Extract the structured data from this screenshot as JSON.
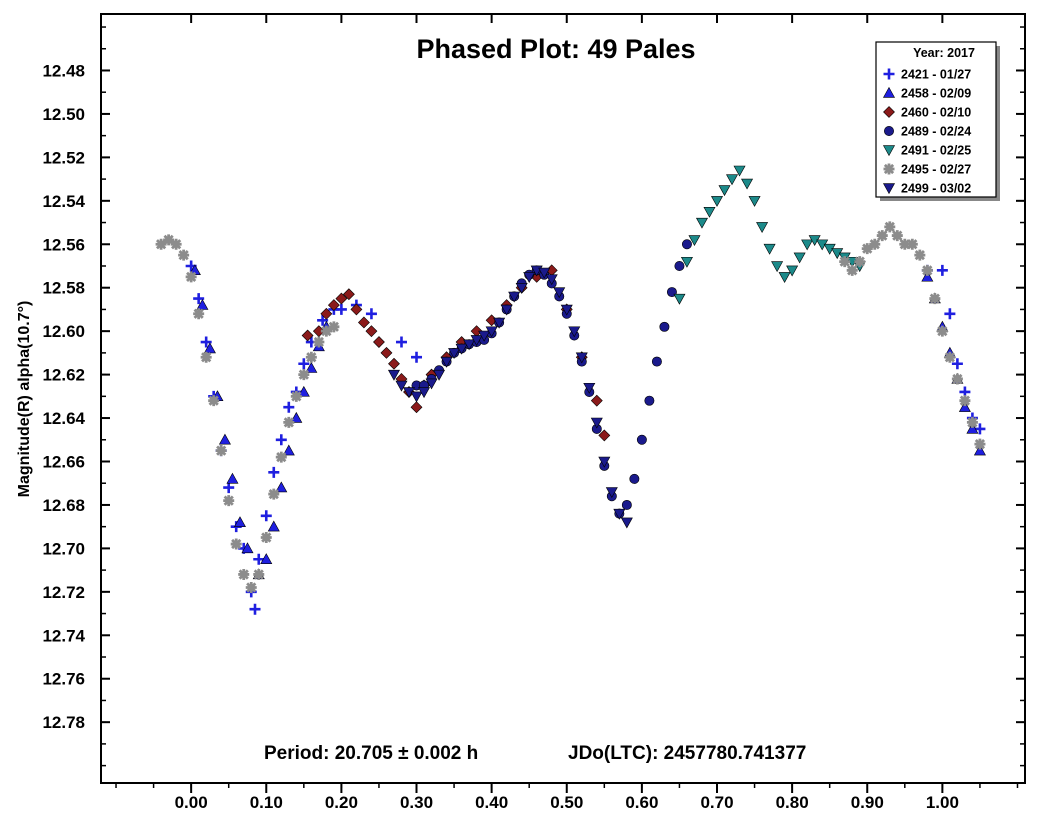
{
  "chart_data": {
    "type": "scatter",
    "title": "Phased Plot: 49 Pales",
    "xlabel": "",
    "ylabel": "Magnitude(R) alpha(10.7°)",
    "xlim": [
      -0.12,
      1.11
    ],
    "ylim": [
      12.808,
      12.454
    ],
    "y_inverted": true,
    "x_ticks": [
      "0.00",
      "0.10",
      "0.20",
      "0.30",
      "0.40",
      "0.50",
      "0.60",
      "0.70",
      "0.80",
      "0.90",
      "1.00"
    ],
    "y_ticks": [
      "12.48",
      "12.50",
      "12.52",
      "12.54",
      "12.56",
      "12.58",
      "12.60",
      "12.62",
      "12.64",
      "12.66",
      "12.68",
      "12.70",
      "12.72",
      "12.74",
      "12.76",
      "12.78"
    ],
    "grid": false,
    "legend_position": "top-right",
    "legend_title": "Year: 2017",
    "annotations": {
      "period": "Period: 20.705 ± 0.002 h",
      "epoch": "JDo(LTC): 2457780.741377"
    },
    "series": [
      {
        "name": "2421 - 01/27",
        "marker": "plus",
        "color": "#1f1fe0",
        "x": [
          0.0,
          0.01,
          0.02,
          0.03,
          0.04,
          0.05,
          0.06,
          0.07,
          0.08,
          0.085,
          0.09,
          0.1,
          0.11,
          0.12,
          0.13,
          0.14,
          0.15,
          0.16,
          0.175,
          0.19,
          0.2,
          0.22,
          0.24,
          0.28,
          0.3,
          0.98,
          1.0,
          1.01,
          1.02,
          1.03,
          1.04,
          1.05
        ],
        "y": [
          12.57,
          12.585,
          12.605,
          12.63,
          12.655,
          12.672,
          12.69,
          12.7,
          12.72,
          12.728,
          12.705,
          12.685,
          12.665,
          12.65,
          12.635,
          12.628,
          12.615,
          12.605,
          12.595,
          12.59,
          12.59,
          12.588,
          12.592,
          12.605,
          12.612,
          12.572,
          12.572,
          12.592,
          12.615,
          12.628,
          12.64,
          12.645
        ]
      },
      {
        "name": "2458 - 02/09",
        "marker": "triangle-up",
        "color": "#1f1fe0",
        "x": [
          0.005,
          0.015,
          0.025,
          0.035,
          0.045,
          0.055,
          0.065,
          0.075,
          0.09,
          0.1,
          0.11,
          0.12,
          0.13,
          0.14,
          0.15,
          0.16,
          0.17,
          0.18,
          0.98,
          0.99,
          1.0,
          1.01,
          1.02,
          1.03,
          1.04,
          1.05
        ],
        "y": [
          12.572,
          12.588,
          12.608,
          12.63,
          12.65,
          12.668,
          12.688,
          12.7,
          12.712,
          12.705,
          12.69,
          12.672,
          12.655,
          12.64,
          12.628,
          12.617,
          12.607,
          12.598,
          12.575,
          12.585,
          12.598,
          12.61,
          12.622,
          12.635,
          12.645,
          12.655
        ]
      },
      {
        "name": "2460 - 02/10",
        "marker": "diamond",
        "color": "#8b1a1a",
        "x": [
          0.155,
          0.17,
          0.18,
          0.19,
          0.2,
          0.21,
          0.22,
          0.23,
          0.24,
          0.25,
          0.26,
          0.27,
          0.28,
          0.29,
          0.3,
          0.31,
          0.32,
          0.34,
          0.36,
          0.38,
          0.4,
          0.42,
          0.44,
          0.46,
          0.48,
          0.5,
          0.52,
          0.54,
          0.55
        ],
        "y": [
          12.602,
          12.6,
          12.592,
          12.588,
          12.585,
          12.583,
          12.59,
          12.596,
          12.6,
          12.605,
          12.61,
          12.615,
          12.622,
          12.628,
          12.635,
          12.625,
          12.62,
          12.612,
          12.605,
          12.6,
          12.595,
          12.588,
          12.58,
          12.575,
          12.572,
          12.59,
          12.612,
          12.632,
          12.648
        ]
      },
      {
        "name": "2489 - 02/24",
        "marker": "circle",
        "color": "#1a1a8c",
        "x": [
          0.3,
          0.31,
          0.32,
          0.33,
          0.34,
          0.35,
          0.36,
          0.37,
          0.38,
          0.39,
          0.4,
          0.41,
          0.42,
          0.43,
          0.44,
          0.45,
          0.46,
          0.47,
          0.48,
          0.49,
          0.5,
          0.51,
          0.52,
          0.53,
          0.54,
          0.55,
          0.56,
          0.57,
          0.58,
          0.59,
          0.6,
          0.61,
          0.62,
          0.63,
          0.64,
          0.65,
          0.66
        ],
        "y": [
          12.625,
          12.625,
          12.622,
          12.618,
          12.614,
          12.61,
          12.608,
          12.606,
          12.605,
          12.604,
          12.601,
          12.596,
          12.59,
          12.584,
          12.578,
          12.574,
          12.572,
          12.574,
          12.578,
          12.584,
          12.592,
          12.602,
          12.614,
          12.628,
          12.645,
          12.662,
          12.676,
          12.684,
          12.68,
          12.668,
          12.65,
          12.632,
          12.614,
          12.598,
          12.582,
          12.57,
          12.56
        ]
      },
      {
        "name": "2491 - 02/25",
        "marker": "triangle-down",
        "color": "#1c8a8a",
        "x": [
          0.65,
          0.66,
          0.67,
          0.68,
          0.69,
          0.7,
          0.71,
          0.72,
          0.73,
          0.74,
          0.75,
          0.76,
          0.77,
          0.78,
          0.79,
          0.8,
          0.81,
          0.82,
          0.83,
          0.84,
          0.85,
          0.86,
          0.87,
          0.88,
          0.89
        ],
        "y": [
          12.585,
          12.568,
          12.558,
          12.55,
          12.545,
          12.54,
          12.535,
          12.53,
          12.526,
          12.532,
          12.54,
          12.552,
          12.562,
          12.57,
          12.575,
          12.572,
          12.566,
          12.56,
          12.558,
          12.56,
          12.562,
          12.564,
          12.566,
          12.568,
          12.57
        ]
      },
      {
        "name": "2495 - 02/27",
        "marker": "asterisk",
        "color": "#8c8c8c",
        "x": [
          -0.04,
          -0.03,
          -0.02,
          -0.01,
          0.0,
          0.01,
          0.02,
          0.03,
          0.04,
          0.05,
          0.06,
          0.07,
          0.08,
          0.09,
          0.1,
          0.11,
          0.12,
          0.13,
          0.14,
          0.15,
          0.16,
          0.17,
          0.18,
          0.19,
          0.87,
          0.88,
          0.89,
          0.9,
          0.91,
          0.92,
          0.93,
          0.94,
          0.95,
          0.96,
          0.97,
          0.98,
          0.99,
          1.0,
          1.01,
          1.02,
          1.03,
          1.04,
          1.05
        ],
        "y": [
          12.56,
          12.558,
          12.56,
          12.565,
          12.575,
          12.592,
          12.612,
          12.632,
          12.655,
          12.678,
          12.698,
          12.712,
          12.718,
          12.712,
          12.695,
          12.675,
          12.658,
          12.642,
          12.63,
          12.62,
          12.612,
          12.605,
          12.6,
          12.598,
          12.568,
          12.572,
          12.568,
          12.562,
          12.56,
          12.556,
          12.552,
          12.556,
          12.56,
          12.56,
          12.565,
          12.572,
          12.585,
          12.6,
          12.612,
          12.622,
          12.632,
          12.642,
          12.652
        ]
      },
      {
        "name": "2499 - 03/02",
        "marker": "triangle-down",
        "color": "#1a1a8c",
        "x": [
          0.27,
          0.28,
          0.29,
          0.3,
          0.31,
          0.32,
          0.33,
          0.34,
          0.35,
          0.36,
          0.37,
          0.38,
          0.39,
          0.4,
          0.41,
          0.42,
          0.43,
          0.44,
          0.45,
          0.46,
          0.47,
          0.48,
          0.49,
          0.5,
          0.51,
          0.52,
          0.53,
          0.54,
          0.55,
          0.56,
          0.57,
          0.58
        ],
        "y": [
          12.62,
          12.625,
          12.628,
          12.63,
          12.628,
          12.624,
          12.62,
          12.614,
          12.61,
          12.608,
          12.606,
          12.604,
          12.602,
          12.6,
          12.596,
          12.59,
          12.584,
          12.58,
          12.575,
          12.572,
          12.573,
          12.576,
          12.582,
          12.59,
          12.6,
          12.612,
          12.626,
          12.642,
          12.66,
          12.674,
          12.684,
          12.688
        ]
      }
    ]
  }
}
